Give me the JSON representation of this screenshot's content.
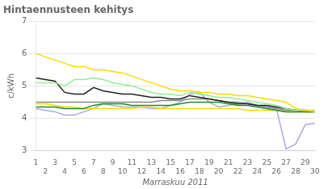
{
  "chart_data": {
    "type": "line",
    "title": "Hintaennusteen kehitys",
    "xlabel": "Marraskuu 2011",
    "ylabel": "c/kWh",
    "x": [
      1,
      2,
      3,
      4,
      5,
      6,
      7,
      8,
      9,
      10,
      11,
      12,
      13,
      14,
      15,
      16,
      17,
      18,
      19,
      20,
      21,
      22,
      23,
      24,
      25,
      26,
      27,
      28,
      29,
      30
    ],
    "xlim": [
      1,
      30
    ],
    "xticks": [
      1,
      2,
      3,
      4,
      5,
      6,
      7,
      8,
      9,
      10,
      11,
      12,
      13,
      14,
      15,
      16,
      17,
      18,
      19,
      20,
      21,
      22,
      23,
      24,
      25,
      26,
      27,
      28,
      29,
      30
    ],
    "ylim": [
      3,
      7
    ],
    "yticks": [
      3,
      4,
      5,
      6,
      7
    ],
    "grid": "y",
    "series": [
      {
        "color": "#FFD700",
        "values": [
          6.0,
          5.9,
          5.8,
          5.7,
          5.6,
          5.6,
          5.5,
          5.5,
          5.45,
          5.4,
          5.3,
          5.2,
          5.1,
          5.0,
          4.9,
          4.85,
          4.85,
          4.8,
          4.8,
          4.75,
          4.75,
          4.7,
          4.7,
          4.65,
          4.6,
          4.55,
          4.5,
          4.3,
          4.25,
          4.25
        ]
      },
      {
        "color": "#90EE90",
        "values": [
          5.1,
          5.1,
          5.1,
          5.0,
          5.2,
          5.2,
          5.25,
          5.2,
          5.1,
          5.05,
          5.0,
          4.9,
          4.8,
          4.75,
          4.75,
          4.7,
          4.8,
          4.75,
          4.7,
          4.65,
          4.65,
          4.6,
          4.55,
          4.5,
          4.45,
          4.4,
          4.3,
          4.25,
          4.25,
          4.2
        ]
      },
      {
        "color": "#228B22",
        "values": [
          4.35,
          4.35,
          4.35,
          4.3,
          4.3,
          4.3,
          4.4,
          4.45,
          4.45,
          4.45,
          4.4,
          4.4,
          4.4,
          4.4,
          4.4,
          4.45,
          4.5,
          4.5,
          4.5,
          4.5,
          4.45,
          4.4,
          4.4,
          4.35,
          4.3,
          4.25,
          4.2,
          4.2,
          4.2,
          4.2
        ]
      },
      {
        "color": "#FFD700",
        "values": [
          4.45,
          4.45,
          4.4,
          4.35,
          4.35,
          4.3,
          4.3,
          4.3,
          4.3,
          4.3,
          4.3,
          4.35,
          4.35,
          4.3,
          4.3,
          4.3,
          4.3,
          4.3,
          4.3,
          4.3,
          4.3,
          4.3,
          4.25,
          4.25,
          4.25,
          4.25,
          4.2,
          4.2,
          4.2,
          4.2
        ]
      },
      {
        "color": "#222222",
        "values": [
          5.25,
          5.2,
          5.15,
          4.8,
          4.75,
          4.75,
          4.95,
          4.85,
          4.8,
          4.75,
          4.75,
          4.7,
          4.65,
          4.65,
          4.6,
          4.6,
          4.7,
          4.65,
          4.6,
          4.55,
          4.5,
          4.45,
          4.45,
          4.4,
          4.4,
          4.35,
          4.3,
          4.25,
          4.25,
          4.2
        ]
      },
      {
        "color": "#888888",
        "values": [
          4.5,
          4.5,
          4.5,
          4.5,
          4.5,
          4.5,
          4.5,
          4.5,
          4.5,
          4.5,
          4.5,
          4.5,
          4.5,
          4.55,
          4.55,
          4.55,
          4.6,
          4.6,
          4.6,
          4.55,
          4.5,
          4.5,
          4.45,
          4.4,
          4.35,
          4.3,
          4.25,
          4.25,
          4.2,
          4.2
        ]
      },
      {
        "color": "#AAAADD",
        "values": [
          4.3,
          4.25,
          4.2,
          4.1,
          4.1,
          4.2,
          4.3,
          4.45,
          4.4,
          4.35,
          4.35,
          4.35,
          4.3,
          4.3,
          4.4,
          4.5,
          4.75,
          4.8,
          4.5,
          4.35,
          4.4,
          4.45,
          4.5,
          4.4,
          4.35,
          4.3,
          3.05,
          3.2,
          3.8,
          3.85
        ]
      }
    ]
  }
}
